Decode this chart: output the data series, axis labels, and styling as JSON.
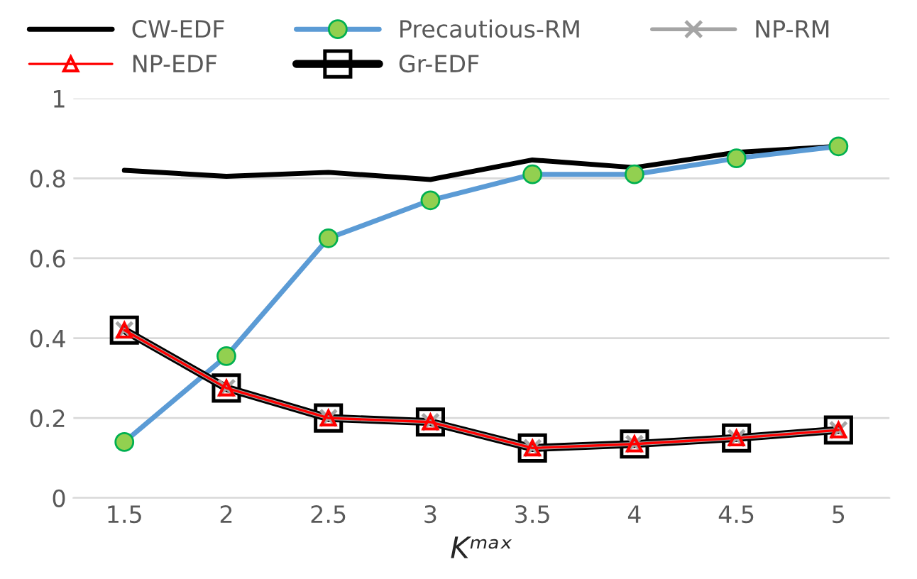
{
  "chart_data": {
    "type": "line",
    "xlabel": "Kᵐᵃˣ",
    "categories": [
      "1.5",
      "2",
      "2.5",
      "3",
      "3.5",
      "4",
      "4.5",
      "5"
    ],
    "series": [
      {
        "name": "CW-EDF",
        "color": "#000000",
        "marker": "none",
        "values": [
          0.82,
          0.805,
          0.815,
          0.797,
          0.846,
          0.827,
          0.865,
          0.88
        ]
      },
      {
        "name": "Precautious-RM",
        "color": "#5b9bd5",
        "marker": "circle",
        "values": [
          0.14,
          0.355,
          0.65,
          0.745,
          0.81,
          0.81,
          0.85,
          0.88
        ]
      },
      {
        "name": "NP-RM",
        "color": "#a5a5a5",
        "marker": "cross",
        "values": [
          0.42,
          0.275,
          0.2,
          0.19,
          0.125,
          0.135,
          0.15,
          0.17
        ]
      },
      {
        "name": "NP-EDF",
        "color": "#ff0000",
        "marker": "triangle",
        "values": [
          0.42,
          0.275,
          0.2,
          0.19,
          0.125,
          0.135,
          0.15,
          0.17
        ]
      },
      {
        "name": "Gr-EDF",
        "color": "#000000",
        "marker": "square",
        "values": [
          0.42,
          0.275,
          0.2,
          0.19,
          0.125,
          0.135,
          0.15,
          0.17
        ]
      }
    ],
    "ylim": [
      0,
      1
    ],
    "yticks": [
      0,
      0.2,
      0.4,
      0.6,
      0.8,
      1
    ],
    "grid": "y",
    "legend": "top",
    "line_style": "solid"
  }
}
